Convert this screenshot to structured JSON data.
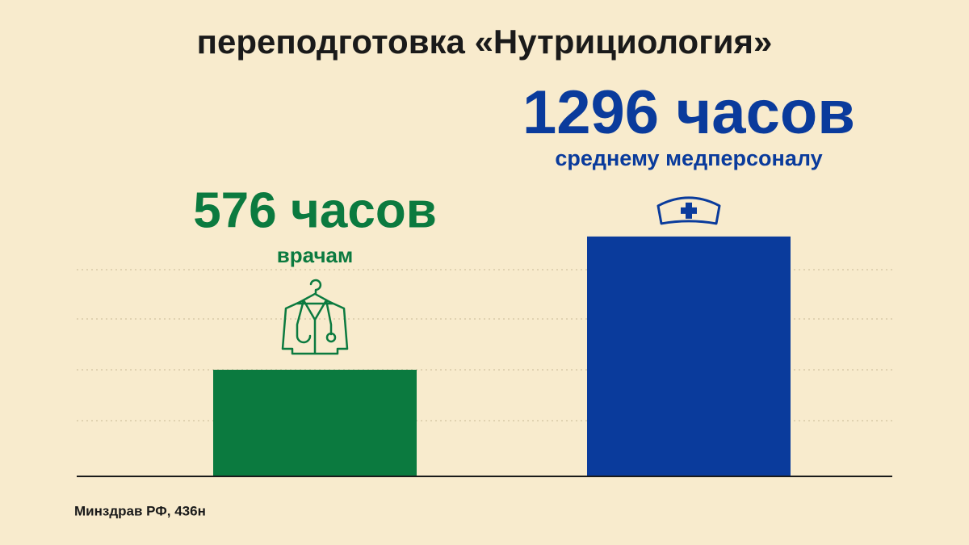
{
  "chart_data": {
    "type": "bar",
    "title": "переподготовка «Нутрициология»",
    "categories": [
      "врачам",
      "среднему медперсоналу"
    ],
    "values": [
      576,
      1296
    ],
    "value_labels": [
      "576 часов",
      "1296 часов"
    ],
    "colors": [
      "#0b7a3f",
      "#0a3b9c"
    ],
    "ylim": [
      0,
      1300
    ],
    "source": "Минздрав РФ, 436н"
  }
}
